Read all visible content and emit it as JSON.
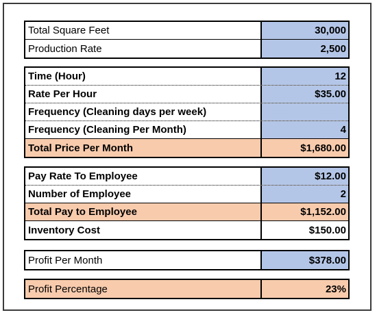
{
  "colors": {
    "input_fill": "#b4c6e7",
    "total_fill": "#f8cbad"
  },
  "sections": [
    {
      "rows": [
        {
          "label": "Total Square Feet",
          "value": "30,000"
        },
        {
          "label": "Production Rate",
          "value": "2,500"
        }
      ]
    },
    {
      "rows": [
        {
          "label": "Time (Hour)",
          "value": "12"
        },
        {
          "label": "Rate Per Hour",
          "value": "$35.00"
        },
        {
          "label": "Frequency (Cleaning days per week)",
          "value": ""
        },
        {
          "label": "Frequency (Cleaning  Per Month)",
          "value": "4"
        },
        {
          "label": "Total Price Per Month",
          "value": "$1,680.00"
        }
      ]
    },
    {
      "rows": [
        {
          "label": "Pay Rate To Employee",
          "value": "$12.00"
        },
        {
          "label": "Number of Employee",
          "value": "2"
        },
        {
          "label": "Total Pay to Employee",
          "value": "$1,152.00"
        },
        {
          "label": "Inventory Cost",
          "value": "$150.00"
        }
      ]
    },
    {
      "rows": [
        {
          "label": "Profit Per Month",
          "value": "$378.00"
        }
      ]
    },
    {
      "rows": [
        {
          "label": "Profit Percentage",
          "value": "23%"
        }
      ]
    }
  ]
}
